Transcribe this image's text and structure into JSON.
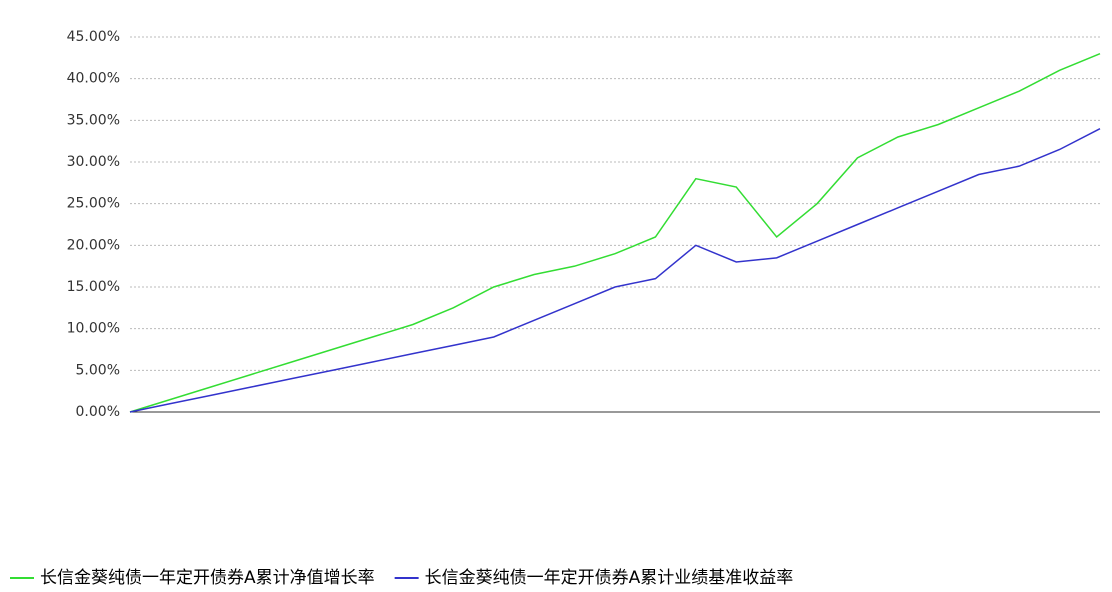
{
  "chart_data": {
    "type": "line",
    "ylim": [
      0,
      45
    ],
    "yticks": [
      {
        "value": 0,
        "label": "0.00%"
      },
      {
        "value": 5,
        "label": "5.00%"
      },
      {
        "value": 10,
        "label": "10.00%"
      },
      {
        "value": 15,
        "label": "15.00%"
      },
      {
        "value": 20,
        "label": "20.00%"
      },
      {
        "value": 25,
        "label": "25.00%"
      },
      {
        "value": 30,
        "label": "30.00%"
      },
      {
        "value": 35,
        "label": "35.00%"
      },
      {
        "value": 40,
        "label": "40.00%"
      },
      {
        "value": 45,
        "label": "45.00%"
      }
    ],
    "grid": true,
    "series": [
      {
        "name": "长信金葵纯债一年定开债券A累计净值增长率",
        "color": "#33dd33",
        "values": [
          0,
          1.5,
          3,
          4.5,
          6,
          7.5,
          9,
          10.5,
          12.5,
          15,
          16.5,
          17.5,
          19,
          21,
          28,
          27,
          21,
          25,
          30.5,
          33,
          34.5,
          36.5,
          38.5,
          41,
          43
        ]
      },
      {
        "name": "长信金葵纯债一年定开债券A累计业绩基准收益率",
        "color": "#3333cc",
        "values": [
          0,
          1,
          2,
          3,
          4,
          5,
          6,
          7,
          8,
          9,
          11,
          13,
          15,
          16,
          20,
          18,
          18.5,
          20.5,
          22.5,
          24.5,
          26.5,
          28.5,
          29.5,
          31.5,
          34
        ]
      }
    ]
  }
}
